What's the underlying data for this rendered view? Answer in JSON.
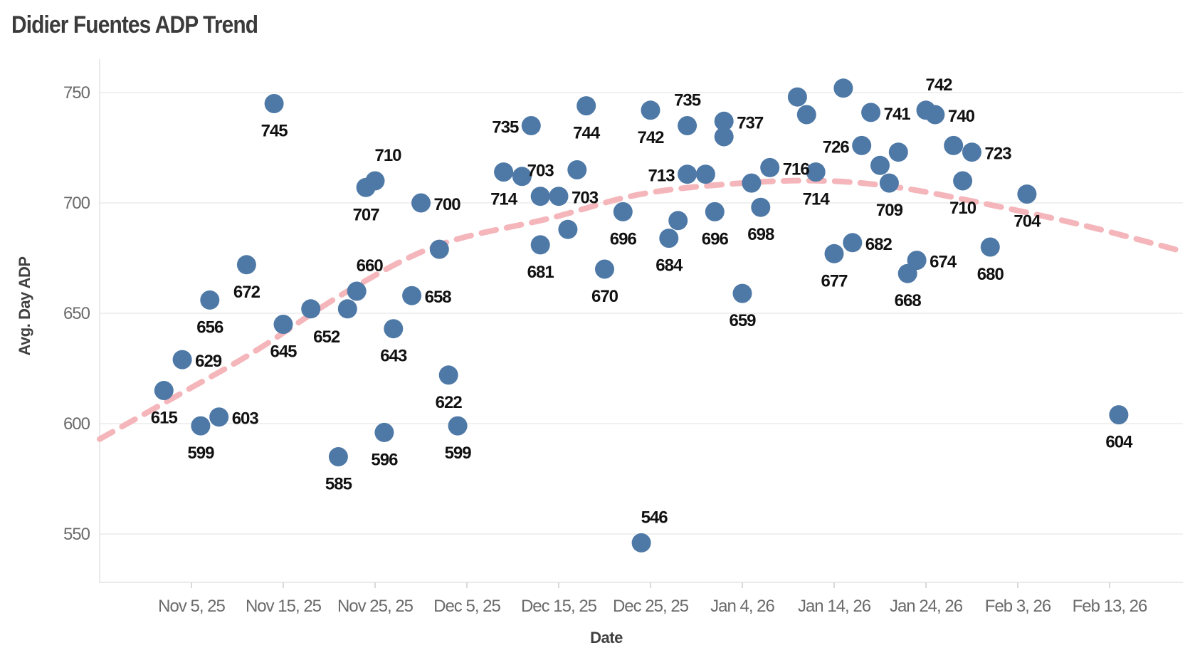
{
  "chart_data": {
    "type": "scatter",
    "title": "Didier Fuentes ADP Trend",
    "xlabel": "Date",
    "ylabel": "Avg. Day ADP",
    "x_axis": {
      "tick_dates": [
        "2025-11-05",
        "2025-11-15",
        "2025-11-25",
        "2025-12-05",
        "2025-12-15",
        "2025-12-25",
        "2026-01-04",
        "2026-01-14",
        "2026-01-24",
        "2026-02-03",
        "2026-02-13"
      ],
      "tick_labels": [
        "Nov 5, 25",
        "Nov 15, 25",
        "Nov 25, 25",
        "Dec 5, 25",
        "Dec 15, 25",
        "Dec 25, 25",
        "Jan 4, 26",
        "Jan 14, 26",
        "Jan 24, 26",
        "Feb 3, 26",
        "Feb 13, 26"
      ]
    },
    "y_axis": {
      "ticks": [
        750,
        700,
        650,
        600,
        550
      ],
      "min": 535,
      "max": 765,
      "grid": true
    },
    "colors": {
      "dot": "#4e79a7",
      "trend": "#f4b6ba",
      "grid": "#ececec",
      "axis_line": "#e2e2e2",
      "tick_mark": "#d9d9d9",
      "point_label": "#111111",
      "tick_text": "#6b6b6b",
      "title_text": "#3b3b3b",
      "axis_title_text": "#414141"
    },
    "points": [
      {
        "date": "2025-11-02",
        "adp": 615,
        "label": "615",
        "label_pos": "below"
      },
      {
        "date": "2025-11-04",
        "adp": 629,
        "label": "629",
        "label_pos": "right"
      },
      {
        "date": "2025-11-06",
        "adp": 599,
        "label": "599",
        "label_pos": "below"
      },
      {
        "date": "2025-11-07",
        "adp": 656,
        "label": "656",
        "label_pos": "below"
      },
      {
        "date": "2025-11-08",
        "adp": 603,
        "label": "603",
        "label_pos": "right"
      },
      {
        "date": "2025-11-11",
        "adp": 672,
        "label": "672",
        "label_pos": "below"
      },
      {
        "date": "2025-11-14",
        "adp": 745,
        "label": "745",
        "label_pos": "below"
      },
      {
        "date": "2025-11-15",
        "adp": 645,
        "label": "645",
        "label_pos": "below"
      },
      {
        "date": "2025-11-18",
        "adp": 652,
        "label": "652",
        "label_pos": "below-right"
      },
      {
        "date": "2025-11-21",
        "adp": 585,
        "label": "585",
        "label_pos": "below"
      },
      {
        "date": "2025-11-22",
        "adp": 652,
        "label": "",
        "label_pos": "none"
      },
      {
        "date": "2025-11-23",
        "adp": 660,
        "label": "660",
        "label_pos": "above-right"
      },
      {
        "date": "2025-11-24",
        "adp": 707,
        "label": "707",
        "label_pos": "below"
      },
      {
        "date": "2025-11-25",
        "adp": 710,
        "label": "710",
        "label_pos": "above-right"
      },
      {
        "date": "2025-11-26",
        "adp": 596,
        "label": "596",
        "label_pos": "below"
      },
      {
        "date": "2025-11-27",
        "adp": 643,
        "label": "643",
        "label_pos": "below"
      },
      {
        "date": "2025-11-29",
        "adp": 658,
        "label": "658",
        "label_pos": "right"
      },
      {
        "date": "2025-11-30",
        "adp": 700,
        "label": "700",
        "label_pos": "right"
      },
      {
        "date": "2025-12-02",
        "adp": 679,
        "label": "",
        "label_pos": "none"
      },
      {
        "date": "2025-12-03",
        "adp": 622,
        "label": "622",
        "label_pos": "below"
      },
      {
        "date": "2025-12-04",
        "adp": 599,
        "label": "599",
        "label_pos": "below"
      },
      {
        "date": "2025-12-09",
        "adp": 714,
        "label": "714",
        "label_pos": "below"
      },
      {
        "date": "2025-12-11",
        "adp": 712,
        "label": "",
        "label_pos": "none"
      },
      {
        "date": "2025-12-12",
        "adp": 735,
        "label": "735",
        "label_pos": "left"
      },
      {
        "date": "2025-12-13",
        "adp": 703,
        "label": "703",
        "label_pos": "above"
      },
      {
        "date": "2025-12-13",
        "adp": 681,
        "label": "681",
        "label_pos": "below"
      },
      {
        "date": "2025-12-15",
        "adp": 703,
        "label": "703",
        "label_pos": "right"
      },
      {
        "date": "2025-12-16",
        "adp": 688,
        "label": "",
        "label_pos": "none"
      },
      {
        "date": "2025-12-17",
        "adp": 715,
        "label": "",
        "label_pos": "none"
      },
      {
        "date": "2025-12-18",
        "adp": 744,
        "label": "744",
        "label_pos": "below"
      },
      {
        "date": "2025-12-20",
        "adp": 670,
        "label": "670",
        "label_pos": "below"
      },
      {
        "date": "2025-12-22",
        "adp": 696,
        "label": "696",
        "label_pos": "below"
      },
      {
        "date": "2025-12-24",
        "adp": 546,
        "label": "546",
        "label_pos": "above-right"
      },
      {
        "date": "2025-12-25",
        "adp": 742,
        "label": "742",
        "label_pos": "below"
      },
      {
        "date": "2025-12-27",
        "adp": 684,
        "label": "684",
        "label_pos": "below"
      },
      {
        "date": "2025-12-28",
        "adp": 692,
        "label": "",
        "label_pos": "none"
      },
      {
        "date": "2025-12-29",
        "adp": 735,
        "label": "735",
        "label_pos": "above"
      },
      {
        "date": "2025-12-29",
        "adp": 713,
        "label": "713",
        "label_pos": "left"
      },
      {
        "date": "2025-12-31",
        "adp": 713,
        "label": "",
        "label_pos": "none"
      },
      {
        "date": "2026-01-01",
        "adp": 696,
        "label": "696",
        "label_pos": "below"
      },
      {
        "date": "2026-01-02",
        "adp": 730,
        "label": "",
        "label_pos": "none"
      },
      {
        "date": "2026-01-02",
        "adp": 737,
        "label": "737",
        "label_pos": "right"
      },
      {
        "date": "2026-01-04",
        "adp": 659,
        "label": "659",
        "label_pos": "below"
      },
      {
        "date": "2026-01-05",
        "adp": 709,
        "label": "",
        "label_pos": "none"
      },
      {
        "date": "2026-01-06",
        "adp": 698,
        "label": "698",
        "label_pos": "below"
      },
      {
        "date": "2026-01-07",
        "adp": 716,
        "label": "716",
        "label_pos": "right"
      },
      {
        "date": "2026-01-10",
        "adp": 748,
        "label": "",
        "label_pos": "none"
      },
      {
        "date": "2026-01-11",
        "adp": 740,
        "label": "",
        "label_pos": "none"
      },
      {
        "date": "2026-01-12",
        "adp": 714,
        "label": "714",
        "label_pos": "below"
      },
      {
        "date": "2026-01-14",
        "adp": 677,
        "label": "677",
        "label_pos": "below"
      },
      {
        "date": "2026-01-15",
        "adp": 752,
        "label": "",
        "label_pos": "none"
      },
      {
        "date": "2026-01-16",
        "adp": 682,
        "label": "682",
        "label_pos": "right"
      },
      {
        "date": "2026-01-17",
        "adp": 726,
        "label": "726",
        "label_pos": "left"
      },
      {
        "date": "2026-01-18",
        "adp": 741,
        "label": "741",
        "label_pos": "right"
      },
      {
        "date": "2026-01-19",
        "adp": 717,
        "label": "",
        "label_pos": "none"
      },
      {
        "date": "2026-01-20",
        "adp": 709,
        "label": "709",
        "label_pos": "below"
      },
      {
        "date": "2026-01-21",
        "adp": 723,
        "label": "",
        "label_pos": "none"
      },
      {
        "date": "2026-01-22",
        "adp": 668,
        "label": "668",
        "label_pos": "below"
      },
      {
        "date": "2026-01-23",
        "adp": 674,
        "label": "674",
        "label_pos": "right"
      },
      {
        "date": "2026-01-24",
        "adp": 742,
        "label": "742",
        "label_pos": "above-right"
      },
      {
        "date": "2026-01-25",
        "adp": 740,
        "label": "740",
        "label_pos": "right"
      },
      {
        "date": "2026-01-27",
        "adp": 726,
        "label": "",
        "label_pos": "none"
      },
      {
        "date": "2026-01-28",
        "adp": 710,
        "label": "710",
        "label_pos": "below"
      },
      {
        "date": "2026-01-29",
        "adp": 723,
        "label": "723",
        "label_pos": "right"
      },
      {
        "date": "2026-01-31",
        "adp": 680,
        "label": "680",
        "label_pos": "below"
      },
      {
        "date": "2026-02-04",
        "adp": 704,
        "label": "704",
        "label_pos": "below"
      },
      {
        "date": "2026-02-14",
        "adp": 604,
        "label": "604",
        "label_pos": "below"
      }
    ],
    "trendline": {
      "style": "dashed",
      "color": "#f4b6ba",
      "points": [
        {
          "date": "2025-10-26",
          "adp": 593
        },
        {
          "date": "2025-11-04",
          "adp": 614
        },
        {
          "date": "2025-11-12",
          "adp": 633
        },
        {
          "date": "2025-11-22",
          "adp": 660
        },
        {
          "date": "2025-12-02",
          "adp": 681
        },
        {
          "date": "2025-12-14",
          "adp": 693
        },
        {
          "date": "2025-12-24",
          "adp": 704
        },
        {
          "date": "2026-01-04",
          "adp": 709
        },
        {
          "date": "2026-01-13",
          "adp": 710
        },
        {
          "date": "2026-01-21",
          "adp": 707
        },
        {
          "date": "2026-01-30",
          "adp": 700
        },
        {
          "date": "2026-02-10",
          "adp": 690
        },
        {
          "date": "2026-02-21",
          "adp": 678
        }
      ]
    }
  }
}
